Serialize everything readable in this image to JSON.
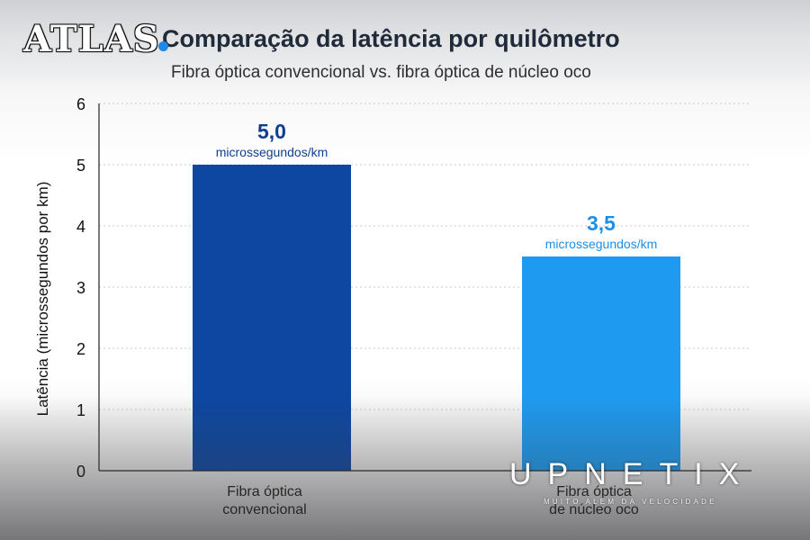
{
  "brand": {
    "logo_text": "ATLAS",
    "watermark": "UPNETIX",
    "watermark_tagline": "MUITO ALÉM DA VELOCIDADE"
  },
  "chart_data": {
    "type": "bar",
    "title": "Comparação da latência por quilômetro",
    "subtitle": "Fibra óptica convencional vs. fibra óptica de núcleo oco",
    "ylabel": "Latência (microssegundos por km)",
    "xlabel": "",
    "ylim": [
      0,
      6
    ],
    "yticks": [
      0,
      1,
      2,
      3,
      4,
      5,
      6
    ],
    "grid": true,
    "categories": [
      "Fibra óptica convencional",
      "Fibra óptica de núcleo oco"
    ],
    "category_lines": [
      [
        "Fibra óptica",
        "convencional"
      ],
      [
        "Fibra óptica",
        "de núcleo oco"
      ]
    ],
    "values": [
      5.0,
      3.5
    ],
    "value_labels": [
      "5,0",
      "3,5"
    ],
    "unit_label": "microssegundos/km",
    "colors": [
      "#0d47a1",
      "#1e9bf0"
    ],
    "label_colors": [
      "#0d3f91",
      "#1e8fe6"
    ]
  }
}
